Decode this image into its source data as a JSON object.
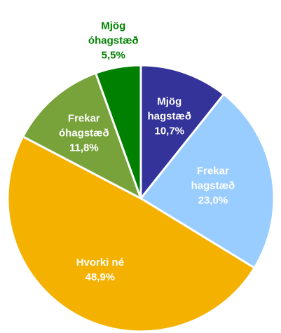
{
  "chart_data": {
    "type": "pie",
    "categories": [
      "Mjög hagstæð",
      "Frekar hagstæð",
      "Hvorki né",
      "Frekar óhagstæð",
      "Mjög óhagstæð"
    ],
    "values": [
      10.7,
      23.0,
      48.9,
      11.8,
      5.5
    ],
    "value_labels": [
      "10,7%",
      "23,0%",
      "48,9%",
      "11,8%",
      "5,5%"
    ],
    "colors": [
      "#333399",
      "#99ccff",
      "#f5b100",
      "#77a33a",
      "#008000"
    ]
  }
}
